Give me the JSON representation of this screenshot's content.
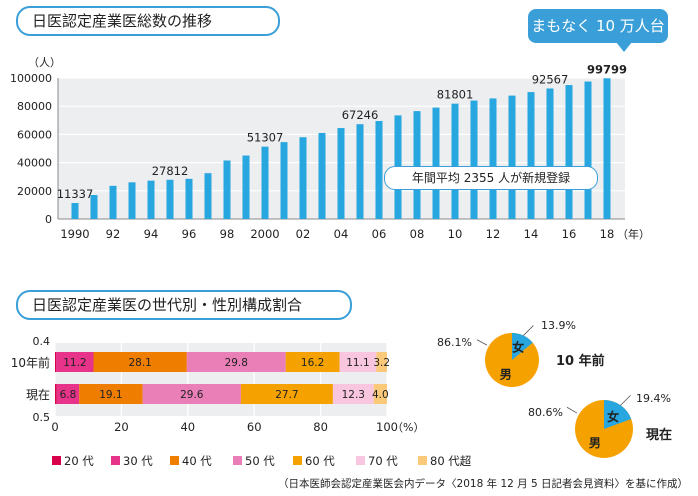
{
  "chart_data": [
    {
      "type": "bar",
      "title": "日医認定産業医総数の推移",
      "ylabel": "（人）",
      "xlabel": "（年）",
      "ylim": [
        0,
        100000
      ],
      "yticks": [
        "0",
        "20000",
        "40000",
        "60000",
        "80000",
        "100000"
      ],
      "xtick_labels": [
        "1990",
        "92",
        "94",
        "96",
        "98",
        "2000",
        "02",
        "04",
        "06",
        "08",
        "10",
        "12",
        "14",
        "16",
        "18"
      ],
      "x": [
        1990,
        1991,
        1992,
        1993,
        1994,
        1995,
        1996,
        1997,
        1998,
        1999,
        2000,
        2001,
        2002,
        2003,
        2004,
        2005,
        2006,
        2007,
        2008,
        2009,
        2010,
        2011,
        2012,
        2013,
        2014,
        2015,
        2016,
        2017,
        2018
      ],
      "values": [
        11337,
        17000,
        23500,
        26000,
        27200,
        27812,
        28500,
        32500,
        41500,
        45000,
        51307,
        54500,
        58000,
        61000,
        64500,
        67246,
        69500,
        73500,
        76500,
        79000,
        81801,
        84000,
        85500,
        87500,
        90000,
        92567,
        95000,
        97500,
        99799
      ],
      "data_labels": [
        {
          "x": 1990,
          "text": "11337"
        },
        {
          "x": 1995,
          "text": "27812"
        },
        {
          "x": 2000,
          "text": "51307"
        },
        {
          "x": 2005,
          "text": "67246"
        },
        {
          "x": 2010,
          "text": "81801"
        },
        {
          "x": 2015,
          "text": "92567"
        },
        {
          "x": 2018,
          "text": "99799"
        }
      ],
      "callout": "まもなく 10 万人台",
      "annotation": "年間平均 2355 人が新規登録",
      "color": "#27a6df"
    },
    {
      "type": "bar",
      "orientation": "horizontal-stacked",
      "title": "日医認定産業医の世代別・性別構成割合",
      "xlabel": "（%）",
      "xlim": [
        0,
        100
      ],
      "xticks": [
        "0",
        "20",
        "40",
        "60",
        "80",
        "100"
      ],
      "categories": [
        "10年前",
        "現在"
      ],
      "row_side_values": [
        "0.4",
        "0.5"
      ],
      "series": [
        {
          "name": "20 代",
          "color": "#d7004a",
          "values": [
            0.4,
            0.5
          ],
          "labels": [
            "",
            ""
          ]
        },
        {
          "name": "30 代",
          "color": "#e8338b",
          "values": [
            11.2,
            6.8
          ],
          "labels": [
            "11.2",
            "6.8"
          ]
        },
        {
          "name": "40 代",
          "color": "#ee7d00",
          "values": [
            28.1,
            19.1
          ],
          "labels": [
            "28.1",
            "19.1"
          ]
        },
        {
          "name": "50 代",
          "color": "#ea7fb8",
          "values": [
            29.8,
            29.6
          ],
          "labels": [
            "29.8",
            "29.6"
          ]
        },
        {
          "name": "60 代",
          "color": "#f5a200",
          "values": [
            16.2,
            27.7
          ],
          "labels": [
            "16.2",
            "27.7"
          ]
        },
        {
          "name": "70 代",
          "color": "#f8c6de",
          "values": [
            11.1,
            12.3
          ],
          "labels": [
            "11.1",
            "12.3"
          ]
        },
        {
          "name": "80 代超",
          "color": "#fbc97a",
          "values": [
            3.2,
            4.0
          ],
          "labels": [
            "3.2",
            "4.0"
          ]
        }
      ]
    },
    {
      "type": "pie",
      "title": "10 年前",
      "slices": [
        {
          "name": "女",
          "value": 13.9,
          "label": "13.9%",
          "color": "#27a6df"
        },
        {
          "name": "男",
          "value": 86.1,
          "label": "86.1%",
          "color": "#f5a200"
        }
      ]
    },
    {
      "type": "pie",
      "title": "現在",
      "slices": [
        {
          "name": "女",
          "value": 19.4,
          "label": "19.4%",
          "color": "#27a6df"
        },
        {
          "name": "男",
          "value": 80.6,
          "label": "80.6%",
          "color": "#f5a200"
        }
      ]
    }
  ],
  "source_note": "（日本医師会認定産業医会内データ〈2018 年 12 月 5 日記者会見資料〉を基に作成）"
}
